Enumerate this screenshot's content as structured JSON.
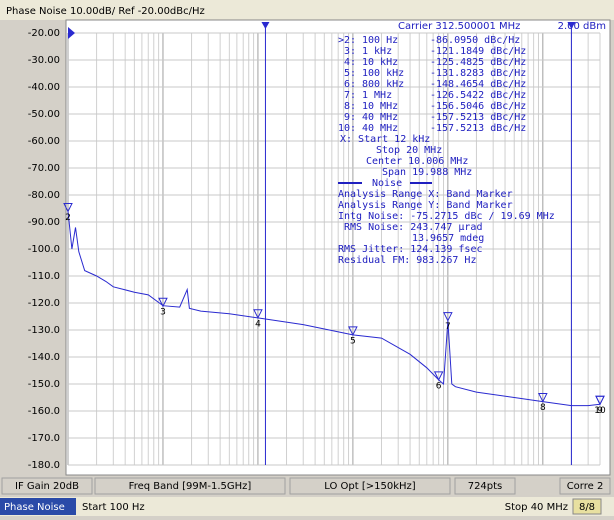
{
  "header": {
    "title": "Phase Noise 10.00dB/ Ref -20.00dBc/Hz"
  },
  "chart_data": {
    "type": "line",
    "log_x": true,
    "grid": true,
    "carrier": "Carrier 312.500001 MHz",
    "power": "2.00 dBm",
    "xlim": [
      100,
      40000000
    ],
    "ylim": [
      -180,
      -20
    ],
    "yticks": [
      {
        "value": -20,
        "label": "-20.00"
      },
      {
        "value": -30,
        "label": "-30.00"
      },
      {
        "value": -40,
        "label": "-40.00"
      },
      {
        "value": -50,
        "label": "-50.00"
      },
      {
        "value": -60,
        "label": "-60.00"
      },
      {
        "value": -70,
        "label": "-70.00"
      },
      {
        "value": -80,
        "label": "-80.00"
      },
      {
        "value": -90,
        "label": "-90.00"
      },
      {
        "value": -100,
        "label": "-100.0"
      },
      {
        "value": -110,
        "label": "-110.0"
      },
      {
        "value": -120,
        "label": "-120.0"
      },
      {
        "value": -130,
        "label": "-130.0"
      },
      {
        "value": -140,
        "label": "-140.0"
      },
      {
        "value": -150,
        "label": "-150.0"
      },
      {
        "value": -160,
        "label": "-160.0"
      },
      {
        "value": -170,
        "label": "-170.0"
      },
      {
        "value": -180,
        "label": "-180.0"
      }
    ],
    "series": [
      {
        "name": "Phase Noise",
        "color": "#2a2ad0",
        "x": [
          100,
          110,
          120,
          130,
          150,
          200,
          250,
          300,
          500,
          700,
          1000,
          1500,
          1800,
          1900,
          2500,
          5000,
          10000,
          30000,
          100000,
          200000,
          400000,
          600000,
          800000,
          900000,
          1000000,
          1100000,
          1200000,
          2000000,
          5000000,
          10000000,
          20000000,
          30000000,
          40000000
        ],
        "values": [
          -86,
          -100,
          -92,
          -101,
          -108,
          -110,
          -112,
          -114,
          -116,
          -117,
          -121,
          -121.5,
          -115,
          -122,
          -123,
          -124,
          -125.5,
          -128,
          -131.8,
          -133,
          -139,
          -144,
          -148.5,
          -150,
          -126.5,
          -150,
          -151,
          -153,
          -155,
          -156.5,
          -158,
          -158,
          -157.5
        ]
      }
    ],
    "analysis_range": {
      "start": 12000,
      "stop": 20000000
    },
    "markers": [
      {
        "name": "2",
        "x": 100,
        "value": -86.095,
        "readout": [
          ">2:",
          "100 Hz",
          "-86.0950 dBc/Hz"
        ]
      },
      {
        "name": "3",
        "x": 1000,
        "value": -121.1849,
        "readout": [
          "3:",
          "1 kHz",
          "-121.1849 dBc/Hz"
        ]
      },
      {
        "name": "4",
        "x": 10000,
        "value": -125.4825,
        "readout": [
          "4:",
          "10 kHz",
          "-125.4825 dBc/Hz"
        ]
      },
      {
        "name": "5",
        "x": 100000,
        "value": -131.8283,
        "readout": [
          "5:",
          "100 kHz",
          "-131.8283 dBc/Hz"
        ]
      },
      {
        "name": "6",
        "x": 800000,
        "value": -148.4654,
        "readout": [
          "6:",
          "800 kHz",
          "-148.4654 dBc/Hz"
        ]
      },
      {
        "name": "7",
        "x": 1000000,
        "value": -126.5422,
        "readout": [
          "7:",
          "1 MHz",
          "-126.5422 dBc/Hz"
        ]
      },
      {
        "name": "8",
        "x": 10000000,
        "value": -156.5046,
        "readout": [
          "8:",
          "10 MHz",
          "-156.5046 dBc/Hz"
        ]
      },
      {
        "name": "9",
        "x": 40000000,
        "value": -157.5213,
        "readout": [
          "9:",
          "40 MHz",
          "-157.5213 dBc/Hz"
        ]
      },
      {
        "name": "10",
        "x": 40000000,
        "value": -157.5213,
        "readout": [
          "10:",
          "40 MHz",
          "-157.5213 dBc/Hz"
        ]
      }
    ],
    "info": [
      "X: Start 12 kHz",
      "Stop 20 MHz",
      "Center 10.006 MHz",
      "Span 19.988 MHz",
      "Noise",
      "Analysis Range X: Band Marker",
      "Analysis Range Y: Band Marker",
      "Intg Noise: -75.2715 dBc / 19.69 MHz",
      "RMS Noise: 243.747 µrad",
      "13.9657 mdeg",
      "RMS Jitter: 124.139 fsec",
      "Residual FM: 983.267 Hz"
    ]
  },
  "softkeys": [
    "IF Gain 20dB",
    "Freq Band [99M-1.5GHz]",
    "LO Opt [>150kHz]",
    "724pts",
    "Corre 2"
  ],
  "status": {
    "mode": "Phase Noise",
    "start": "Start 100 Hz",
    "stop": "Stop 40 MHz",
    "page": "8/8"
  }
}
